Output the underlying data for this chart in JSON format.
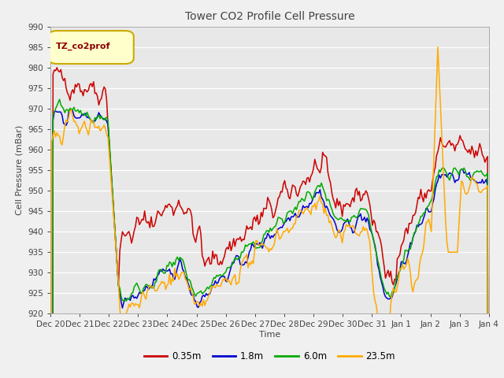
{
  "title": "Tower CO2 Profile Cell Pressure",
  "xlabel": "Time",
  "ylabel": "Cell Pressure (mBar)",
  "ylim": [
    920,
    990
  ],
  "yticks": [
    920,
    925,
    930,
    935,
    940,
    945,
    950,
    955,
    960,
    965,
    970,
    975,
    980,
    985,
    990
  ],
  "bg_color": "#f0f0f0",
  "plot_bg_color": "#e8e8e8",
  "series_colors": [
    "#cc0000",
    "#0000cc",
    "#00aa00",
    "#ffaa00"
  ],
  "series_labels": [
    "0.35m",
    "1.8m",
    "6.0m",
    "23.5m"
  ],
  "legend_label": "TZ_co2prof",
  "legend_bg": "#ffffcc",
  "legend_border": "#ccaa00",
  "num_points": 336,
  "tick_labels": [
    "Dec 20",
    "Dec 21",
    "Dec 22",
    "Dec 23",
    "Dec 24",
    "Dec 25",
    "Dec 26",
    "Dec 27",
    "Dec 28",
    "Dec 29",
    "Dec 30",
    "Dec 31",
    "Jan 1",
    "Jan 2",
    "Jan 3",
    "Jan 4"
  ]
}
